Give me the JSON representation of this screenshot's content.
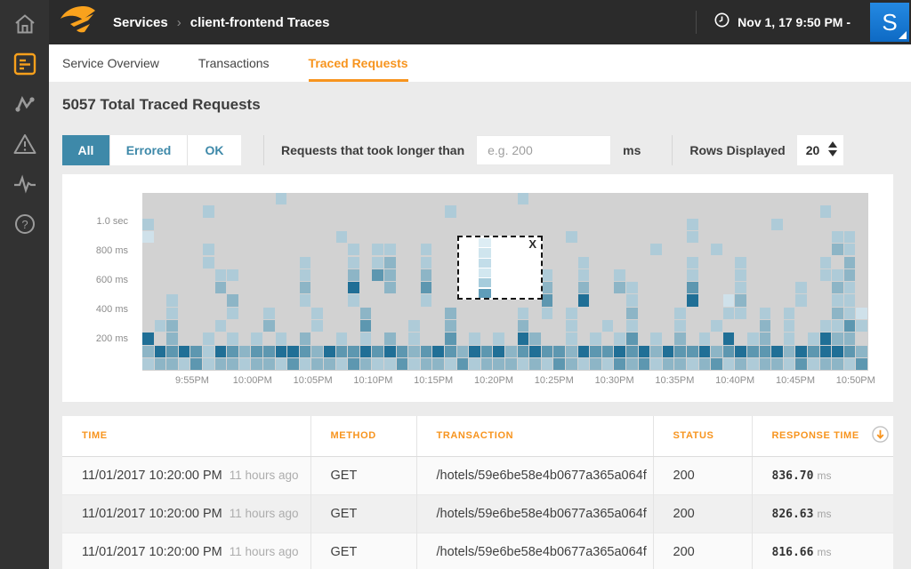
{
  "topbar": {
    "breadcrumb": {
      "section": "Services",
      "separator": "›",
      "page": "client-frontend Traces"
    },
    "time_label": "Nov 1, 17 9:50 PM -",
    "avatar_letter": "S"
  },
  "sidebar": {
    "icons": [
      "home",
      "traced-requests",
      "service-map",
      "alerts",
      "activity",
      "help"
    ]
  },
  "tabs": [
    {
      "label": "Service Overview",
      "active": false
    },
    {
      "label": "Transactions",
      "active": false
    },
    {
      "label": "Traced Requests",
      "active": true
    }
  ],
  "heading": "5057 Total Traced Requests",
  "filters": {
    "segments": [
      {
        "label": "All",
        "active": true
      },
      {
        "label": "Errored",
        "active": false
      },
      {
        "label": "OK",
        "active": false
      }
    ],
    "longer_than_label": "Requests that took longer than",
    "input_placeholder": "e.g. 200",
    "unit": "ms",
    "rows_displayed_label": "Rows Displayed",
    "rows_displayed_value": "20"
  },
  "chart_data": {
    "type": "heatmap",
    "x_ticks": [
      "9:55PM",
      "10:00PM",
      "10:05PM",
      "10:10PM",
      "10:15PM",
      "10:20PM",
      "10:25PM",
      "10:30PM",
      "10:35PM",
      "10:40PM",
      "10:45PM",
      "10:50PM"
    ],
    "y_ticks": [
      "1.0 sec",
      "800 ms",
      "600 ms",
      "400 ms",
      "200 ms"
    ],
    "ylim": [
      "0 ms",
      "1.2 sec"
    ],
    "background": "#d2d2d2",
    "levels": [
      "#cfe1ea",
      "#aecbd8",
      "#8db5c6",
      "#5d97b0",
      "#206f96"
    ],
    "grid": [
      "000000000002000000000000000000020000000000000000000000000000",
      "000002000000000000000000020000000000000000000000000000002000",
      "200000000000000000000000000000000000000000000200000020000000",
      "100000000000000020000000000000000002000000000200000000000220",
      "000002000000000002022002000000000000000000200002000000000320",
      "000002000000020002023002000000000000200000000200020000002030",
      "000000220000020003043003000000000200200200000200020000002230",
      "000000300000030005003004000000000300300320000400020000200320",
      "002000030000020002000002000000000400500020000500130000200220",
      "002000020020002000300000030000020202000030002000220202000321",
      "023000200030002000400020030000030002002020002002000302002242",
      "503002020202030020203020040202053002020240203020502302025330",
      "354542543445543544545434543545345443544545354453454453545543",
      "233242332332423324322423324233323243232434233234232332423324"
    ],
    "selection": {
      "close_label": "X",
      "cells": [
        "#ddedf4",
        "#cfe5ee",
        "#c2dde9",
        "#d2e7f0",
        "#a6ccdc",
        "#5f9db9"
      ]
    }
  },
  "table": {
    "columns": [
      "TIME",
      "METHOD",
      "TRANSACTION",
      "STATUS",
      "RESPONSE TIME"
    ],
    "sort": {
      "column": "RESPONSE TIME",
      "direction": "descending"
    },
    "rows": [
      {
        "time": "11/01/2017 10:20:00 PM",
        "ago": "11 hours ago",
        "method": "GET",
        "transaction": "/hotels/59e6be58e4b0677a365a064f",
        "status": "200",
        "response_value": "836.70",
        "response_unit": "ms"
      },
      {
        "time": "11/01/2017 10:20:00 PM",
        "ago": "11 hours ago",
        "method": "GET",
        "transaction": "/hotels/59e6be58e4b0677a365a064f",
        "status": "200",
        "response_value": "826.63",
        "response_unit": "ms"
      },
      {
        "time": "11/01/2017 10:20:00 PM",
        "ago": "11 hours ago",
        "method": "GET",
        "transaction": "/hotels/59e6be58e4b0677a365a064f",
        "status": "200",
        "response_value": "816.66",
        "response_unit": "ms"
      }
    ]
  },
  "theme": {
    "accent_orange": "#f7941e",
    "accent_teal": "#3e89a9",
    "topbar_bg": "#2b2b2b",
    "sidebar_bg": "#323232",
    "page_bg": "#ebebeb",
    "avatar_blue": "#1375cf"
  }
}
